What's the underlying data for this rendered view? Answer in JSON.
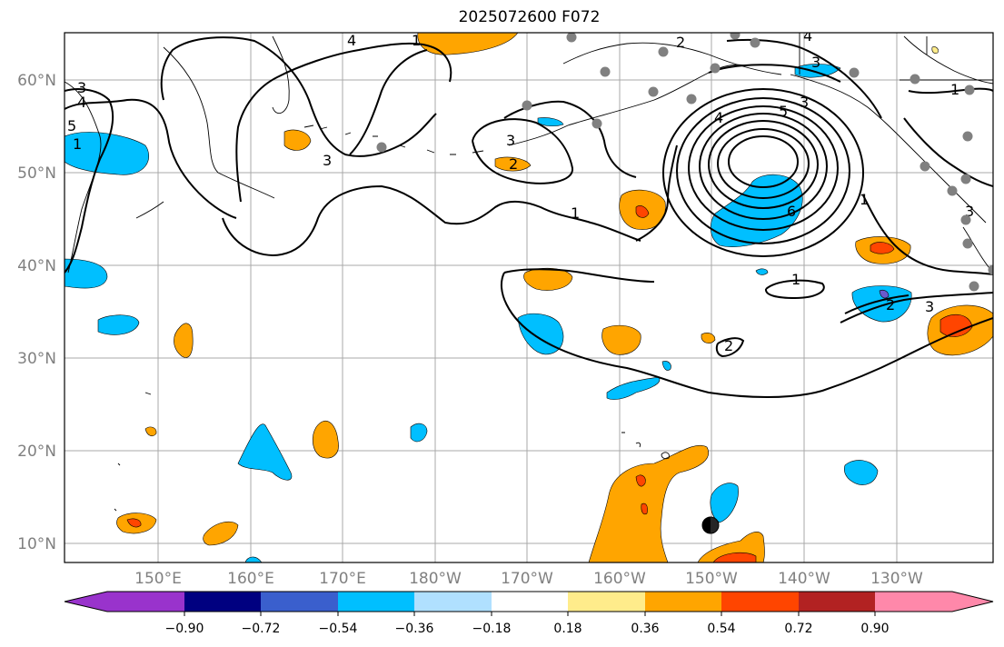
{
  "title": "2025072600 F072",
  "lat_labels": [
    "60°N",
    "50°N",
    "40°N",
    "30°N",
    "20°N",
    "10°N"
  ],
  "lon_labels": [
    "150°E",
    "160°E",
    "170°E",
    "180°W",
    "170°W",
    "160°W",
    "150°W",
    "140°W",
    "130°W"
  ],
  "colorbar": {
    "ticks": [
      "−0.90",
      "−0.72",
      "−0.54",
      "−0.36",
      "−0.18",
      "0.18",
      "0.36",
      "0.54",
      "0.72",
      "0.90"
    ],
    "colors": [
      "#9933cc",
      "#000080",
      "#3a5fcd",
      "#00bfff",
      "#b0e0ff",
      "#ffffff",
      "#ffec8b",
      "#ffa500",
      "#ff4500",
      "#b22222",
      "#ff88aa"
    ]
  },
  "contour_labels": [
    "1",
    "2",
    "3",
    "4",
    "5",
    "6"
  ],
  "fill_colors": {
    "cyan": "#00bfff",
    "orange": "#ffa500",
    "red": "#ff4500",
    "purple": "#6a5acd"
  },
  "marker_color": "#808080"
}
